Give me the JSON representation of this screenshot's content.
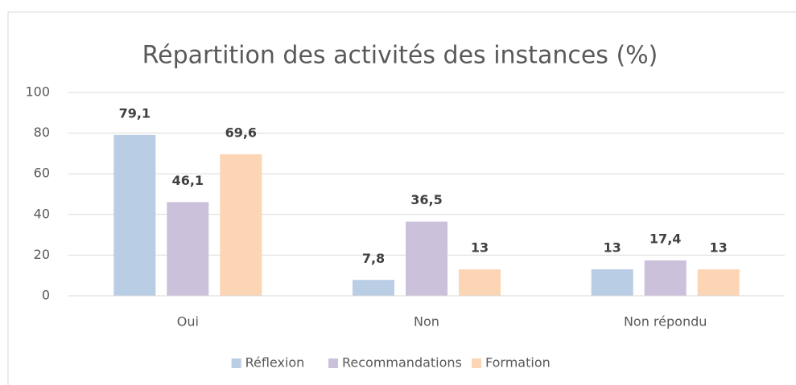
{
  "chart_data": {
    "type": "bar",
    "title": "Répartition des activités des instances (%)",
    "categories": [
      "Oui",
      "Non",
      "Non répondu"
    ],
    "series": [
      {
        "name": "Réflexion",
        "color": "#b9cde5",
        "values": [
          79.1,
          7.8,
          13
        ],
        "value_labels": [
          "79,1",
          "7,8",
          "13"
        ]
      },
      {
        "name": "Recommandations",
        "color": "#ccc1da",
        "values": [
          46.1,
          36.5,
          17.4
        ],
        "value_labels": [
          "46,1",
          "36,5",
          "17,4"
        ]
      },
      {
        "name": "Formation",
        "color": "#fcd5b5",
        "values": [
          69.6,
          13,
          13
        ],
        "value_labels": [
          "69,6",
          "13",
          "13"
        ]
      }
    ],
    "ylim": [
      0,
      100
    ],
    "yticks": [
      0,
      20,
      40,
      60,
      80,
      100
    ],
    "grid": true,
    "legend": "bottom"
  }
}
